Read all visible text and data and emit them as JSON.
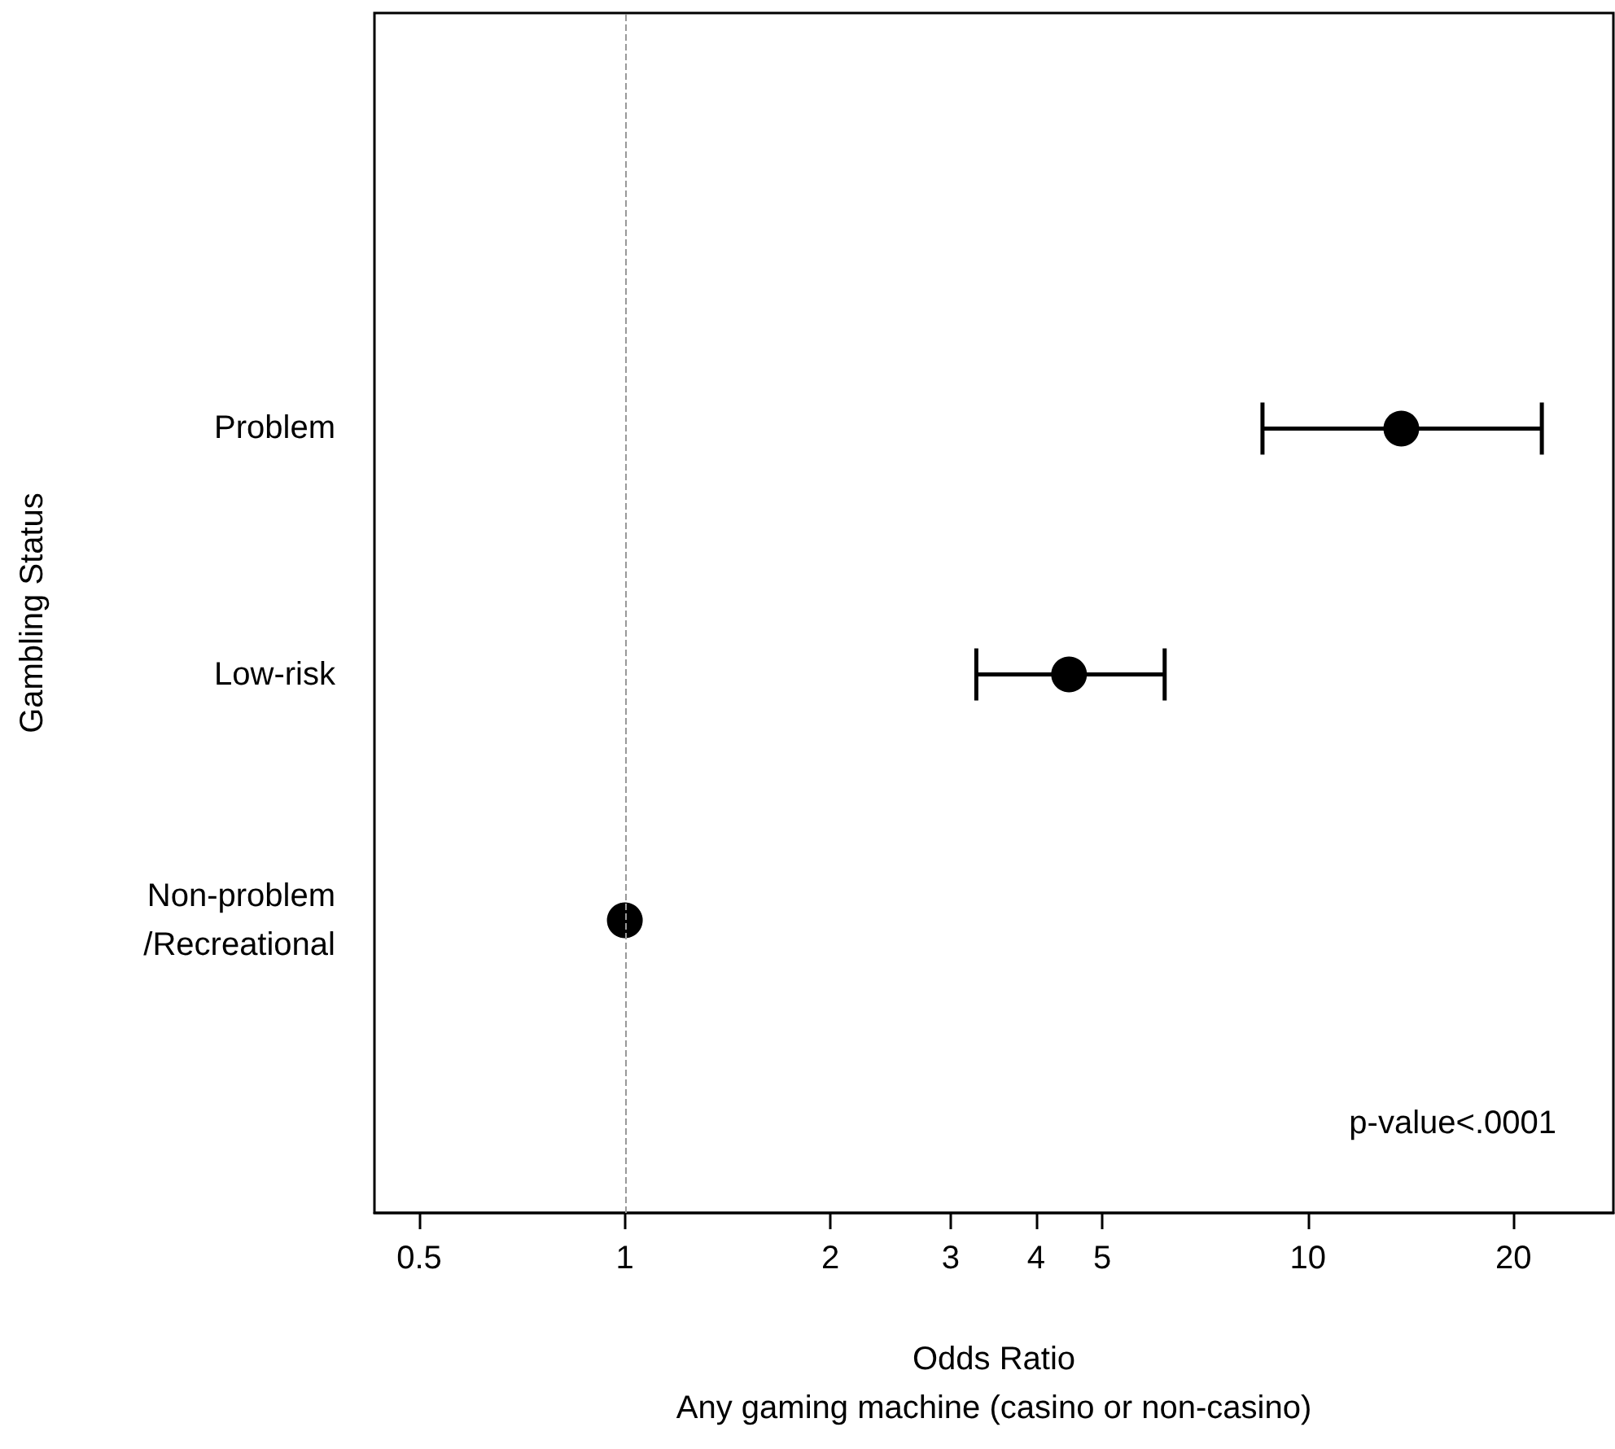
{
  "chart_data": {
    "type": "scatter",
    "orientation": "horizontal",
    "xlabel": "Odds Ratio\nAny gaming machine (casino or non-casino)",
    "ylabel": "Gambling Status",
    "categories": [
      "Problem",
      "Low-risk",
      "Non-problem\n/Recreational"
    ],
    "series": [
      {
        "color": "#000000",
        "values": [
          13.7,
          4.47,
          1
        ],
        "errors": [
          [
            8.58,
            22.0
          ],
          [
            3.27,
            6.17
          ],
          null
        ]
      }
    ],
    "log": "x",
    "xlim": [
      0.43,
      28
    ],
    "xticks": [
      0.5,
      1,
      2,
      3,
      4,
      5,
      10,
      20
    ],
    "marker": "circle",
    "grid": false,
    "ref_lines": [
      {
        "axis": "x",
        "value": 1,
        "color": "#999999",
        "line_style": "dashed"
      }
    ],
    "annotations": [
      "p-value<.0001"
    ]
  }
}
